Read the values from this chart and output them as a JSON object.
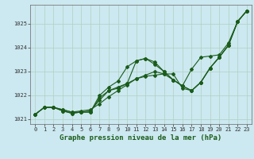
{
  "xlabel": "Graphe pression niveau de la mer (hPa)",
  "x": [
    0,
    1,
    2,
    3,
    4,
    5,
    6,
    7,
    8,
    9,
    10,
    11,
    12,
    13,
    14,
    15,
    16,
    17,
    18,
    19,
    20,
    21,
    22,
    23
  ],
  "line1": [
    1021.2,
    1021.5,
    1021.5,
    1021.4,
    1021.3,
    1021.3,
    1021.35,
    1021.8,
    1022.2,
    1022.3,
    1022.5,
    1023.45,
    1023.55,
    1023.3,
    1023.0,
    1022.65,
    1022.4,
    1022.2,
    1022.55,
    1023.15,
    1023.6,
    1024.1,
    1025.1,
    1025.55
  ],
  "line2": [
    1021.2,
    1021.5,
    1021.5,
    1021.35,
    1021.25,
    1021.3,
    1021.3,
    1021.9,
    1022.2,
    1022.35,
    1022.5,
    1022.7,
    1022.8,
    1022.85,
    1022.9,
    1022.9,
    1022.3,
    1022.2,
    1022.55,
    1023.15,
    1023.6,
    1024.1,
    1025.1,
    1025.55
  ],
  "line3": [
    1021.2,
    1021.5,
    1021.5,
    1021.35,
    1021.25,
    1021.3,
    1021.3,
    1022.0,
    1022.35,
    1022.6,
    1023.2,
    1023.45,
    1023.55,
    1023.4,
    1023.0,
    1022.65,
    1022.4,
    1023.1,
    1023.6,
    1023.65,
    1023.7,
    1024.2,
    1025.1,
    1025.55
  ],
  "line4": [
    1021.2,
    1021.5,
    1021.5,
    1021.4,
    1021.3,
    1021.35,
    1021.4,
    1021.65,
    1021.95,
    1022.2,
    1022.45,
    1022.7,
    1022.85,
    1023.0,
    1022.9,
    1022.65,
    1022.4,
    1022.2,
    1022.55,
    1023.15,
    1023.6,
    1024.1,
    1025.1,
    1025.55
  ],
  "line_color": "#1a5c1a",
  "grid_color": "#b0d0c0",
  "axis_bg": "#cce8f0",
  "ylim": [
    1020.8,
    1025.8
  ],
  "yticks": [
    1021,
    1022,
    1023,
    1024,
    1025
  ],
  "xticks": [
    0,
    1,
    2,
    3,
    4,
    5,
    6,
    7,
    8,
    9,
    10,
    11,
    12,
    13,
    14,
    15,
    16,
    17,
    18,
    19,
    20,
    21,
    22,
    23
  ],
  "marker": "D",
  "markersize": 2.0,
  "linewidth": 0.8,
  "xlabel_fontsize": 6.5,
  "tick_fontsize": 5.0
}
